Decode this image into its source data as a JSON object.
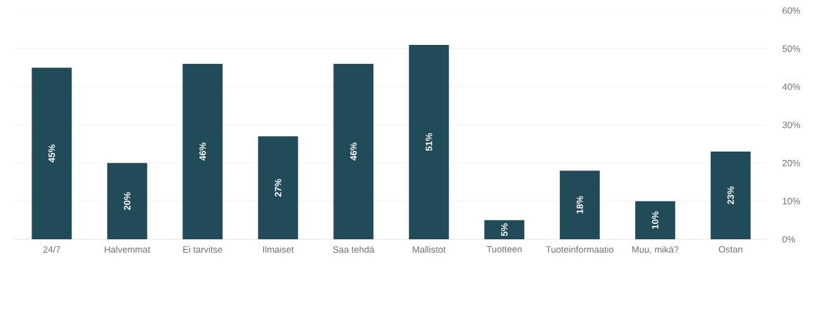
{
  "chart_data": {
    "type": "bar",
    "categories": [
      "24/7",
      "Halvemmat",
      "Ei tarvitse",
      "Ilmaiset",
      "Saa tehdä",
      "Mallistot",
      "Tuotteen",
      "Tuoteinformaatio",
      "Muu, mikä?",
      "Ostan"
    ],
    "values": [
      45,
      20,
      46,
      27,
      46,
      51,
      5,
      18,
      10,
      23
    ],
    "value_labels": [
      "45%",
      "20%",
      "46%",
      "27%",
      "46%",
      "51%",
      "5%",
      "18%",
      "10%",
      "23%"
    ],
    "color": "#224b5a",
    "ylim": [
      0,
      60
    ],
    "yticks": [
      {
        "value": 0,
        "label": "0%"
      },
      {
        "value": 10,
        "label": "10%"
      },
      {
        "value": 20,
        "label": "20%"
      },
      {
        "value": 30,
        "label": "30%"
      },
      {
        "value": 40,
        "label": "40%"
      },
      {
        "value": 50,
        "label": "50%"
      },
      {
        "value": 60,
        "label": "60%"
      }
    ],
    "grid": "y"
  }
}
